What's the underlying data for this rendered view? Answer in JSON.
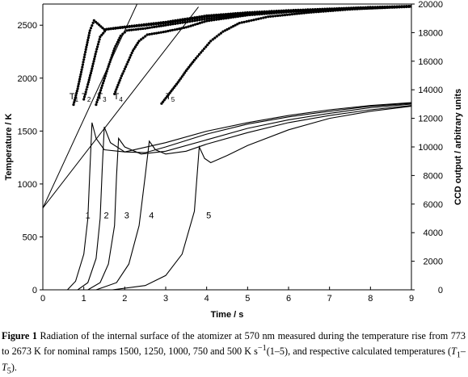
{
  "chart_data": {
    "type": "line",
    "title": "",
    "xlabel": "Time / s",
    "ylabel": "Temperature / K",
    "y2label": "CCD output / arbitrary units",
    "xlim": [
      0,
      9
    ],
    "ylim": [
      0,
      2700
    ],
    "y2lim": [
      0,
      20000
    ],
    "xticks": [
      "0",
      "1",
      "2",
      "3",
      "4",
      "5",
      "6",
      "7",
      "8",
      "9"
    ],
    "yticks": [
      "0",
      "500",
      "1000",
      "1500",
      "2000",
      "2500"
    ],
    "y2ticks": [
      "0",
      "2000",
      "4000",
      "6000",
      "8000",
      "10000",
      "12000",
      "14000",
      "16000",
      "18000",
      "20000"
    ],
    "grid": false,
    "legend": "none",
    "temperature_series": [
      {
        "name": "T1",
        "label_parts": [
          "T",
          "1"
        ],
        "label_at": [
          0.65,
          1800
        ],
        "ramp": 1500
      },
      {
        "name": "T2",
        "label_parts": [
          "T",
          "2"
        ],
        "label_at": [
          0.95,
          1800
        ],
        "ramp": 1250
      },
      {
        "name": "T3",
        "label_parts": [
          "T",
          "3"
        ],
        "label_at": [
          1.33,
          1800
        ],
        "ramp": 1000
      },
      {
        "name": "T4",
        "label_parts": [
          "T",
          "4"
        ],
        "label_at": [
          1.73,
          1800
        ],
        "ramp": 750
      },
      {
        "name": "T5",
        "label_parts": [
          "T",
          "5"
        ],
        "label_at": [
          3.0,
          1800
        ],
        "ramp": 500
      }
    ],
    "calculated_lines": [
      {
        "name": "T1-calc",
        "points": [
          [
            0,
            773
          ],
          [
            2.3,
            2700
          ]
        ]
      },
      {
        "name": "T5-calc",
        "points": [
          [
            0,
            773
          ],
          [
            3.8,
            2673
          ]
        ]
      }
    ],
    "measured_temperature": [
      {
        "name": "T1-data",
        "points": [
          [
            0.75,
            1750
          ],
          [
            0.85,
            1900
          ],
          [
            0.95,
            2080
          ],
          [
            1.05,
            2270
          ],
          [
            1.15,
            2450
          ],
          [
            1.25,
            2545
          ],
          [
            1.5,
            2460
          ],
          [
            2.0,
            2485
          ],
          [
            3.0,
            2530
          ],
          [
            4.0,
            2590
          ],
          [
            5.0,
            2620
          ],
          [
            6.0,
            2640
          ],
          [
            7.0,
            2655
          ],
          [
            8.0,
            2670
          ],
          [
            9.0,
            2680
          ]
        ]
      },
      {
        "name": "T2-data",
        "points": [
          [
            1.0,
            1800
          ],
          [
            1.1,
            1940
          ],
          [
            1.2,
            2090
          ],
          [
            1.3,
            2250
          ],
          [
            1.4,
            2390
          ],
          [
            1.55,
            2460
          ],
          [
            2.0,
            2480
          ],
          [
            3.0,
            2520
          ],
          [
            4.0,
            2580
          ],
          [
            5.0,
            2610
          ],
          [
            6.0,
            2635
          ],
          [
            7.0,
            2650
          ],
          [
            8.0,
            2665
          ],
          [
            9.0,
            2680
          ]
        ]
      },
      {
        "name": "T3-data",
        "points": [
          [
            1.3,
            1750
          ],
          [
            1.45,
            1930
          ],
          [
            1.6,
            2110
          ],
          [
            1.75,
            2280
          ],
          [
            1.9,
            2400
          ],
          [
            2.05,
            2450
          ],
          [
            2.5,
            2470
          ],
          [
            3.0,
            2500
          ],
          [
            4.0,
            2560
          ],
          [
            5.0,
            2605
          ],
          [
            6.0,
            2630
          ],
          [
            7.0,
            2650
          ],
          [
            8.0,
            2660
          ],
          [
            9.0,
            2675
          ]
        ]
      },
      {
        "name": "T4-data",
        "points": [
          [
            1.75,
            1850
          ],
          [
            1.9,
            2000
          ],
          [
            2.05,
            2130
          ],
          [
            2.2,
            2260
          ],
          [
            2.35,
            2350
          ],
          [
            2.55,
            2410
          ],
          [
            3.0,
            2440
          ],
          [
            3.5,
            2480
          ],
          [
            4.0,
            2540
          ],
          [
            5.0,
            2595
          ],
          [
            6.0,
            2625
          ],
          [
            7.0,
            2650
          ],
          [
            8.0,
            2665
          ],
          [
            9.0,
            2680
          ]
        ]
      },
      {
        "name": "T5-data",
        "points": [
          [
            2.9,
            1760
          ],
          [
            3.1,
            1860
          ],
          [
            3.3,
            1960
          ],
          [
            3.5,
            2070
          ],
          [
            3.7,
            2170
          ],
          [
            3.9,
            2260
          ],
          [
            4.1,
            2350
          ],
          [
            4.4,
            2440
          ],
          [
            4.8,
            2520
          ],
          [
            5.5,
            2580
          ],
          [
            6.5,
            2620
          ],
          [
            7.5,
            2650
          ],
          [
            8.5,
            2670
          ],
          [
            9.0,
            2680
          ]
        ]
      }
    ],
    "ccd_series": [
      {
        "name": "1",
        "label_at": [
          1.1,
          5000
        ],
        "points": [
          [
            0.6,
            0
          ],
          [
            0.8,
            600
          ],
          [
            1.0,
            2500
          ],
          [
            1.1,
            5000
          ],
          [
            1.15,
            8500
          ],
          [
            1.2,
            11700
          ],
          [
            1.3,
            10600
          ],
          [
            1.5,
            9800
          ],
          [
            2.0,
            9650
          ],
          [
            3.0,
            10300
          ],
          [
            4.0,
            11100
          ],
          [
            5.0,
            11700
          ],
          [
            6.0,
            12200
          ],
          [
            7.0,
            12600
          ],
          [
            8.0,
            12900
          ],
          [
            9.0,
            13100
          ]
        ]
      },
      {
        "name": "2",
        "label_at": [
          1.55,
          5000
        ],
        "points": [
          [
            0.85,
            0
          ],
          [
            1.1,
            500
          ],
          [
            1.3,
            2200
          ],
          [
            1.4,
            5000
          ],
          [
            1.45,
            8500
          ],
          [
            1.5,
            11400
          ],
          [
            1.65,
            10300
          ],
          [
            2.0,
            9650
          ],
          [
            2.5,
            9600
          ],
          [
            3.0,
            10000
          ],
          [
            4.0,
            10900
          ],
          [
            5.0,
            11600
          ],
          [
            6.0,
            12100
          ],
          [
            7.0,
            12500
          ],
          [
            8.0,
            12850
          ],
          [
            9.0,
            13050
          ]
        ]
      },
      {
        "name": "3",
        "label_at": [
          2.05,
          5000
        ],
        "points": [
          [
            1.1,
            0
          ],
          [
            1.4,
            500
          ],
          [
            1.6,
            1800
          ],
          [
            1.75,
            4500
          ],
          [
            1.8,
            8000
          ],
          [
            1.85,
            10600
          ],
          [
            2.0,
            10000
          ],
          [
            2.4,
            9500
          ],
          [
            3.0,
            9700
          ],
          [
            4.0,
            10500
          ],
          [
            5.0,
            11300
          ],
          [
            6.0,
            11900
          ],
          [
            7.0,
            12350
          ],
          [
            8.0,
            12750
          ],
          [
            9.0,
            13000
          ]
        ]
      },
      {
        "name": "4",
        "label_at": [
          2.65,
          5000
        ],
        "points": [
          [
            1.3,
            0
          ],
          [
            1.8,
            500
          ],
          [
            2.1,
            1800
          ],
          [
            2.35,
            4500
          ],
          [
            2.5,
            8000
          ],
          [
            2.6,
            10400
          ],
          [
            2.75,
            9800
          ],
          [
            3.0,
            9500
          ],
          [
            3.5,
            9700
          ],
          [
            4.0,
            10200
          ],
          [
            5.0,
            11000
          ],
          [
            6.0,
            11700
          ],
          [
            7.0,
            12200
          ],
          [
            8.0,
            12600
          ],
          [
            9.0,
            12900
          ]
        ]
      },
      {
        "name": "5",
        "label_at": [
          4.05,
          5000
        ],
        "points": [
          [
            1.7,
            0
          ],
          [
            2.5,
            300
          ],
          [
            3.0,
            1000
          ],
          [
            3.4,
            2500
          ],
          [
            3.7,
            5500
          ],
          [
            3.82,
            10000
          ],
          [
            3.95,
            9200
          ],
          [
            4.1,
            8900
          ],
          [
            4.5,
            9400
          ],
          [
            5.0,
            10100
          ],
          [
            6.0,
            11200
          ],
          [
            7.0,
            12000
          ],
          [
            8.0,
            12500
          ],
          [
            9.0,
            12850
          ]
        ]
      }
    ]
  },
  "caption": {
    "label": "Figure 1",
    "text_1": " Radiation of the internal surface of the atomizer at 570 nm measured during the temperature rise from 773 to 2673 K for nominal ramps 1500, 1250, 1000, 750 and 500 K s",
    "sup": "−1",
    "text_2": "(1–5), and respective calculated temperatures (",
    "t": "T",
    "sub1": "1",
    "dash": "–",
    "t2": "T",
    "sub2": "5",
    "end": ")."
  }
}
